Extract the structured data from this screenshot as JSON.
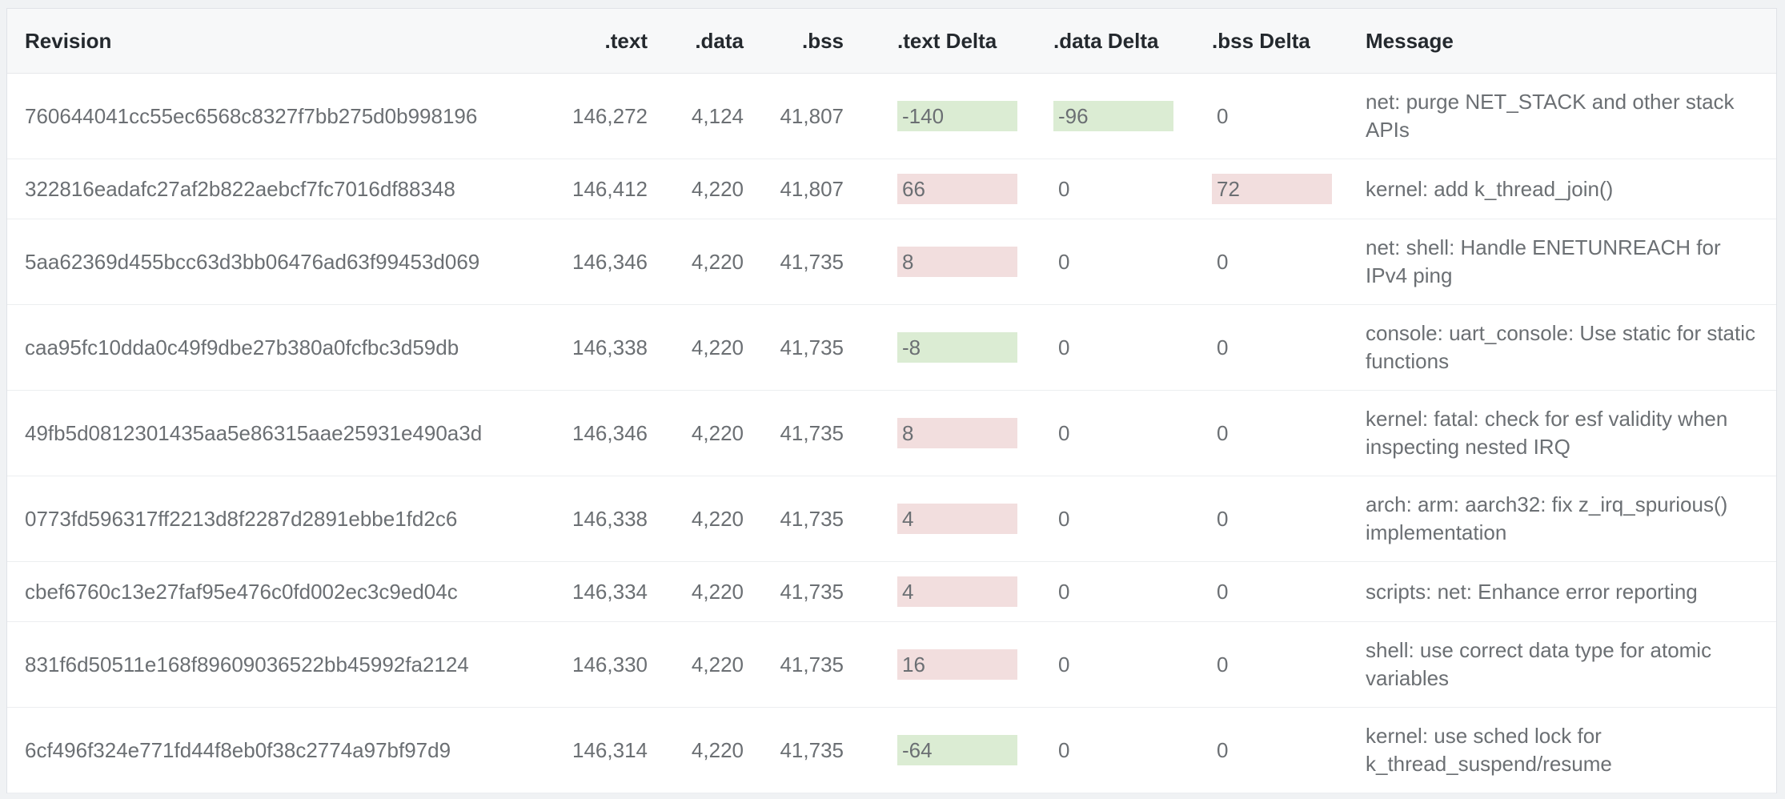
{
  "table": {
    "columns": [
      {
        "key": "revision",
        "label": "Revision"
      },
      {
        "key": "text",
        "label": ".text"
      },
      {
        "key": "data",
        "label": ".data"
      },
      {
        "key": "bss",
        "label": ".bss"
      },
      {
        "key": "text_delta",
        "label": ".text Delta"
      },
      {
        "key": "data_delta",
        "label": ".data Delta"
      },
      {
        "key": "bss_delta",
        "label": ".bss Delta"
      },
      {
        "key": "message",
        "label": "Message"
      }
    ],
    "rows": [
      {
        "revision": "760644041cc55ec6568c8327f7bb275d0b998196",
        "text": "146,272",
        "data": "4,124",
        "bss": "41,807",
        "text_delta": "-140",
        "data_delta": "-96",
        "bss_delta": "0",
        "message": "net: purge NET_STACK and other stack APIs"
      },
      {
        "revision": "322816eadafc27af2b822aebcf7fc7016df88348",
        "text": "146,412",
        "data": "4,220",
        "bss": "41,807",
        "text_delta": "66",
        "data_delta": "0",
        "bss_delta": "72",
        "message": "kernel: add k_thread_join()"
      },
      {
        "revision": "5aa62369d455bcc63d3bb06476ad63f99453d069",
        "text": "146,346",
        "data": "4,220",
        "bss": "41,735",
        "text_delta": "8",
        "data_delta": "0",
        "bss_delta": "0",
        "message": "net: shell: Handle ENETUNREACH for IPv4 ping"
      },
      {
        "revision": "caa95fc10dda0c49f9dbe27b380a0fcfbc3d59db",
        "text": "146,338",
        "data": "4,220",
        "bss": "41,735",
        "text_delta": "-8",
        "data_delta": "0",
        "bss_delta": "0",
        "message": "console: uart_console: Use static for static functions"
      },
      {
        "revision": "49fb5d0812301435aa5e86315aae25931e490a3d",
        "text": "146,346",
        "data": "4,220",
        "bss": "41,735",
        "text_delta": "8",
        "data_delta": "0",
        "bss_delta": "0",
        "message": "kernel: fatal: check for esf validity when inspecting nested IRQ"
      },
      {
        "revision": "0773fd596317ff2213d8f2287d2891ebbe1fd2c6",
        "text": "146,338",
        "data": "4,220",
        "bss": "41,735",
        "text_delta": "4",
        "data_delta": "0",
        "bss_delta": "0",
        "message": "arch: arm: aarch32: fix z_irq_spurious() implementation"
      },
      {
        "revision": "cbef6760c13e27faf95e476c0fd002ec3c9ed04c",
        "text": "146,334",
        "data": "4,220",
        "bss": "41,735",
        "text_delta": "4",
        "data_delta": "0",
        "bss_delta": "0",
        "message": "scripts: net: Enhance error reporting"
      },
      {
        "revision": "831f6d50511e168f89609036522bb45992fa2124",
        "text": "146,330",
        "data": "4,220",
        "bss": "41,735",
        "text_delta": "16",
        "data_delta": "0",
        "bss_delta": "0",
        "message": "shell: use correct data type for atomic variables"
      },
      {
        "revision": "6cf496f324e771fd44f8eb0f38c2774a97bf97d9",
        "text": "146,314",
        "data": "4,220",
        "bss": "41,735",
        "text_delta": "-64",
        "data_delta": "0",
        "bss_delta": "0",
        "message": "kernel: use sched lock for k_thread_suspend/resume"
      }
    ]
  },
  "colors": {
    "page_background": "#f0f2f4",
    "card_background": "#ffffff",
    "card_border": "#e0e3e8",
    "header_background": "#f7f8f9",
    "header_text": "#24292e",
    "body_text": "#6b6f73",
    "row_border": "#eceef0",
    "delta_decrease_bg": "#dbecd3",
    "delta_increase_bg": "#f2dede"
  }
}
